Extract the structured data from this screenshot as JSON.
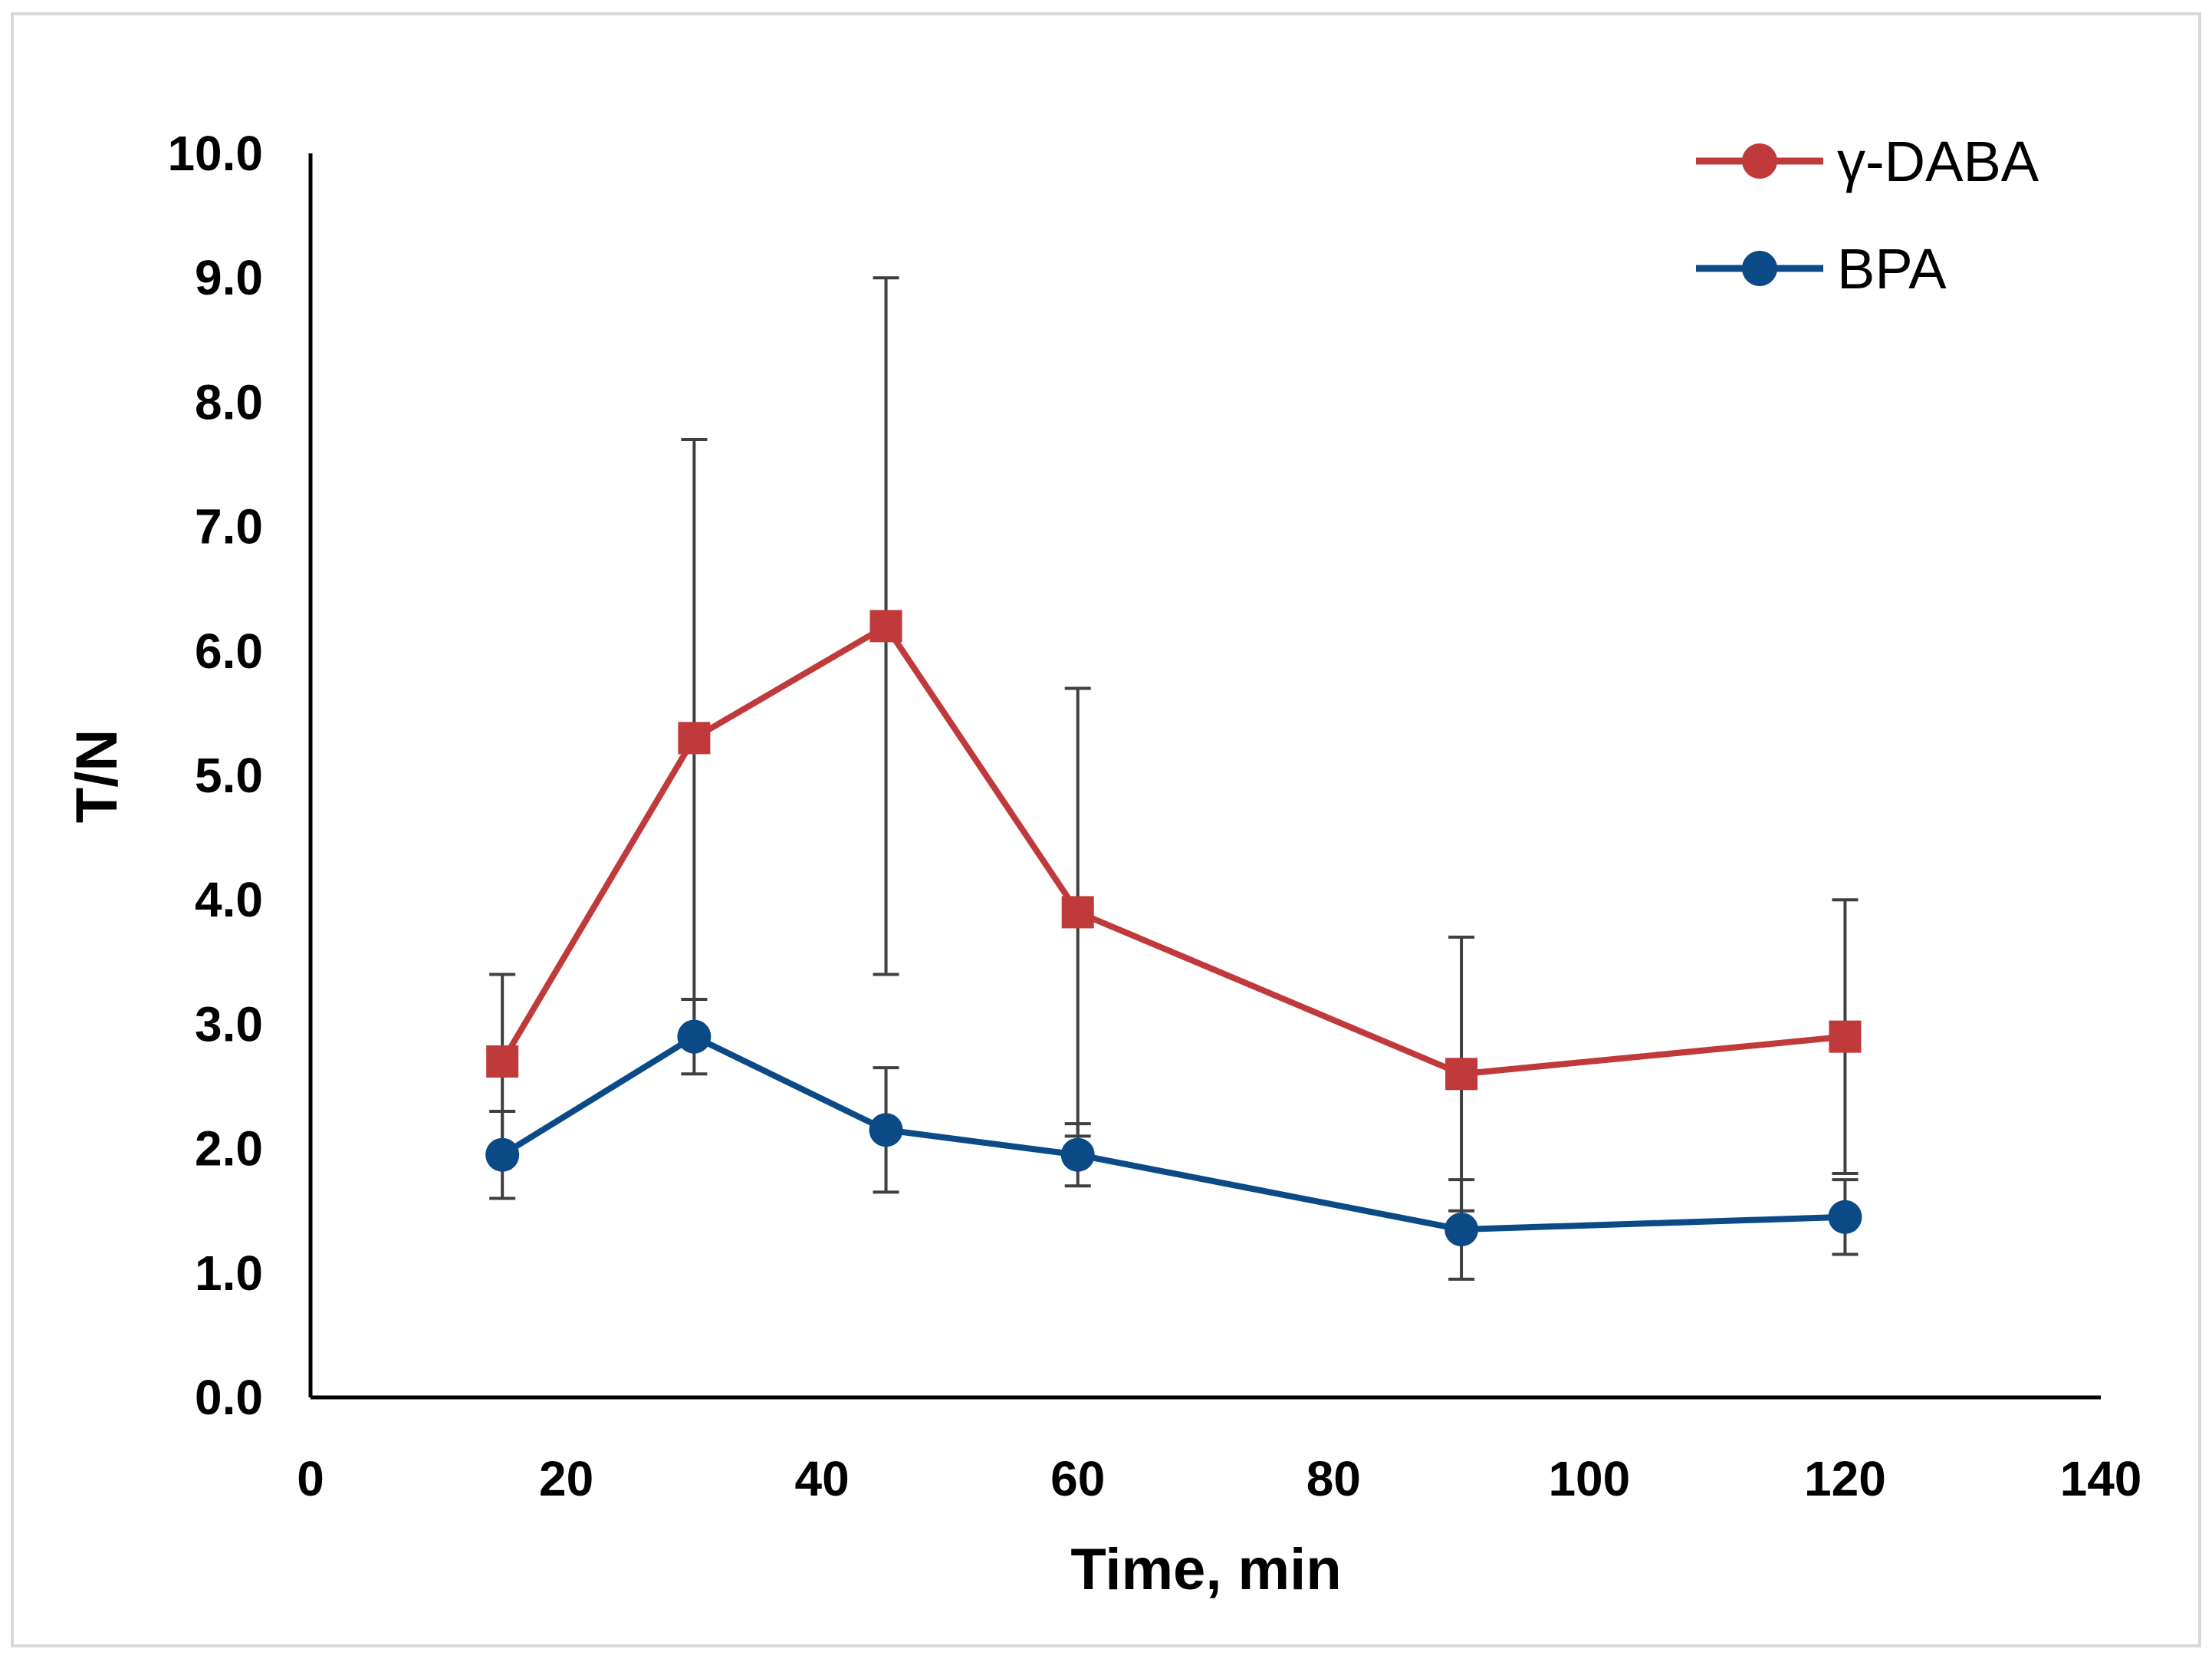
{
  "colors": {
    "background": "#ffffff",
    "frame": "#d9d9d9",
    "axis": "#000000",
    "error_bar": "#404040"
  },
  "chart_data": {
    "type": "line",
    "title": "",
    "xlabel": "Time, min",
    "ylabel": "T/N",
    "xlim": [
      0,
      140
    ],
    "ylim": [
      0.0,
      10.0
    ],
    "x_ticks": [
      0,
      20,
      40,
      60,
      80,
      100,
      120,
      140
    ],
    "y_ticks": [
      0.0,
      1.0,
      2.0,
      3.0,
      4.0,
      5.0,
      6.0,
      7.0,
      8.0,
      9.0,
      10.0
    ],
    "x_tick_labels": [
      "0",
      "20",
      "40",
      "60",
      "80",
      "100",
      "120",
      "140"
    ],
    "y_tick_labels": [
      "0.0",
      "1.0",
      "2.0",
      "3.0",
      "4.0",
      "5.0",
      "6.0",
      "7.0",
      "8.0",
      "9.0",
      "10.0"
    ],
    "grid": false,
    "legend_position": "top-right",
    "x": [
      15,
      30,
      45,
      60,
      90,
      120
    ],
    "series": [
      {
        "name": "γ-DABA",
        "color": "#c0393b",
        "marker": "square",
        "values": [
          2.7,
          5.3,
          6.2,
          3.9,
          2.6,
          2.9
        ],
        "error": [
          0.7,
          2.4,
          2.8,
          1.8,
          1.1,
          1.1
        ]
      },
      {
        "name": "BPA",
        "color": "#0b4a86",
        "marker": "circle",
        "values": [
          1.95,
          2.9,
          2.15,
          1.95,
          1.35,
          1.45
        ],
        "error": [
          0.35,
          0.3,
          0.5,
          0.25,
          0.4,
          0.3
        ]
      }
    ]
  }
}
